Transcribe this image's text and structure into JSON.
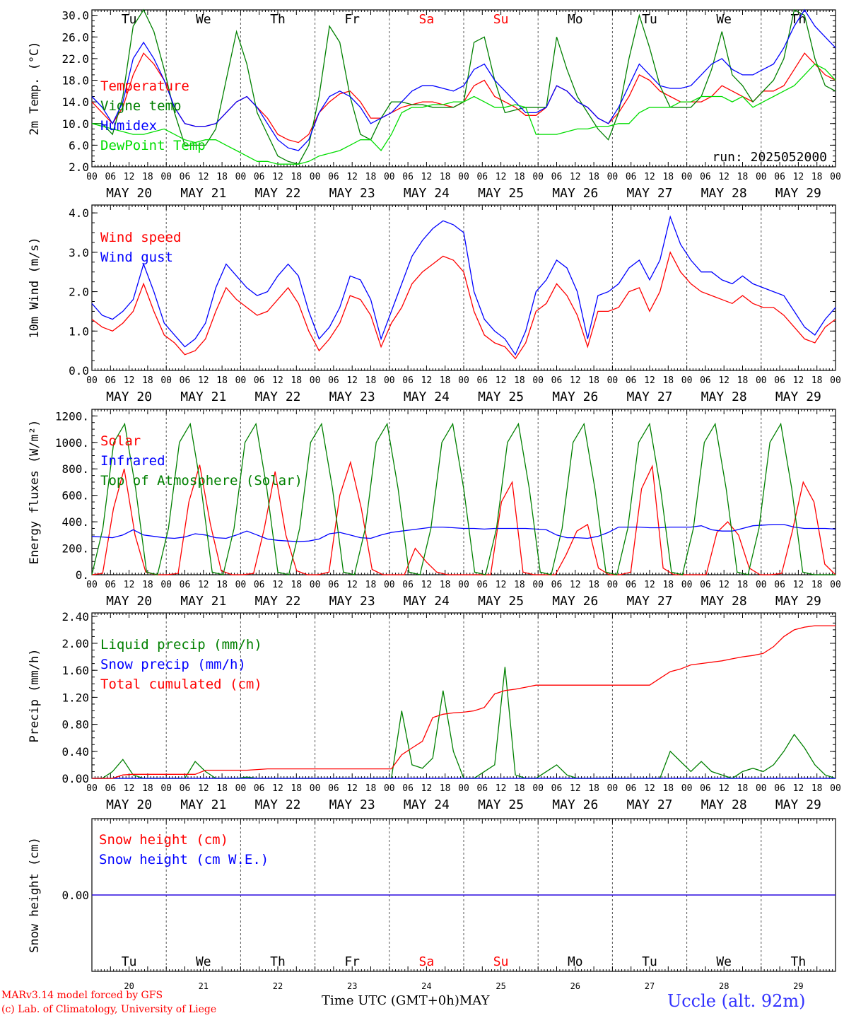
{
  "days": [
    "Tu",
    "We",
    "Th",
    "Fr",
    "Sa",
    "Su",
    "Mo",
    "Tu",
    "We",
    "Th"
  ],
  "weekend_days": [
    4,
    5
  ],
  "dates": [
    "MAY 20",
    "MAY 21",
    "MAY 22",
    "MAY 23",
    "MAY 24",
    "MAY 25",
    "MAY 26",
    "MAY 27",
    "MAY 28",
    "MAY 29"
  ],
  "day_numbers": [
    "20",
    "21",
    "22",
    "23",
    "24",
    "25",
    "26",
    "27",
    "28",
    "29"
  ],
  "hour_ticks": [
    "00",
    "06",
    "12",
    "18"
  ],
  "footer": {
    "model": "MARv3.14 model forced by GFS",
    "lab": "(c) Lab. of Climatology, University of Liege",
    "xlabel": "Time UTC (GMT+0h)",
    "month": "MAY",
    "station": "Uccle (alt. 92m)"
  },
  "colors": {
    "red": "#ff0000",
    "green": "#008000",
    "blue": "#0000ff",
    "lime": "#00dd00",
    "axis": "#000000"
  },
  "chart_data": [
    {
      "type": "line",
      "ylabel": "2m Temp. (°C)",
      "ylim": [
        2,
        31
      ],
      "ticks": [
        2,
        6,
        10,
        14,
        18,
        22,
        26,
        30
      ],
      "tick_labels": [
        "2.0",
        "6.0",
        "10.0",
        "14.0",
        "18.0",
        "22.0",
        "26.0",
        "30.0"
      ],
      "annotation": "run: 2025052000",
      "x_hours_step": 6,
      "series": [
        {
          "name": "Temperature",
          "color": "red",
          "values": [
            14,
            12,
            10,
            13,
            19,
            23,
            21,
            18,
            13,
            10,
            9.5,
            9.5,
            10,
            12,
            14,
            15,
            13,
            11,
            8,
            7,
            6.5,
            8,
            12,
            14,
            15.5,
            16,
            14,
            11,
            11,
            12,
            13,
            13.5,
            14,
            14,
            13.5,
            13,
            14,
            17,
            18,
            15,
            14,
            13,
            11.5,
            11.5,
            13,
            17,
            16,
            14,
            13,
            11,
            10,
            12,
            15,
            19,
            18,
            16,
            15,
            14,
            14,
            14,
            15,
            17,
            16,
            15,
            14,
            16,
            16,
            17,
            20,
            23,
            21,
            19,
            18
          ]
        },
        {
          "name": "Vigne temp",
          "color": "green",
          "values": [
            10,
            10,
            8,
            15,
            28,
            31,
            27,
            20,
            12,
            6,
            6,
            6,
            9,
            18,
            27,
            21,
            12,
            8,
            4,
            3,
            2.5,
            6,
            15,
            28,
            25,
            15,
            8,
            7,
            11,
            14,
            14,
            13.5,
            13.5,
            13,
            13,
            13,
            14,
            25,
            26,
            18,
            12,
            12.5,
            13,
            13,
            13,
            26,
            20,
            15,
            12,
            9,
            7,
            12,
            22,
            30,
            24,
            17,
            13,
            13,
            13,
            15,
            20,
            27,
            19,
            17,
            14,
            16,
            18,
            22,
            31,
            30,
            22,
            17,
            16
          ]
        },
        {
          "name": "Humidex",
          "color": "blue",
          "values": [
            15,
            13,
            10,
            14,
            22,
            25,
            22,
            18,
            13,
            10,
            9.5,
            9.5,
            10,
            12,
            14,
            15,
            13,
            10,
            7,
            5.5,
            5,
            7,
            12,
            15,
            16,
            15,
            13,
            10,
            11,
            12,
            14,
            16,
            17,
            17,
            16.5,
            16,
            17,
            20,
            21,
            18,
            16,
            14,
            12,
            12,
            13,
            17,
            16,
            14,
            13,
            11,
            10,
            13,
            17,
            21,
            19,
            17,
            16.5,
            16.5,
            17,
            19,
            21,
            22,
            20,
            19,
            19,
            20,
            21,
            24,
            28,
            31,
            28,
            26,
            24
          ]
        },
        {
          "name": "DewPoint Temp",
          "color": "lime",
          "values": [
            10,
            9.5,
            9,
            8.5,
            8,
            8,
            8.5,
            9,
            8,
            7,
            6.5,
            7,
            7,
            6,
            5,
            4,
            3,
            3,
            2.5,
            2.5,
            2.5,
            3,
            4,
            4.5,
            5,
            6,
            7,
            7,
            5,
            8,
            12,
            13,
            13,
            13.5,
            13.5,
            14,
            14,
            15,
            14,
            13,
            13,
            13.5,
            13,
            8,
            8,
            8,
            8.5,
            9,
            9,
            9.5,
            9.5,
            10,
            10,
            12,
            13,
            13,
            13,
            14,
            14,
            15,
            15,
            15,
            14,
            15,
            13,
            14,
            15,
            16,
            17,
            19,
            21,
            20,
            18
          ]
        }
      ]
    },
    {
      "type": "line",
      "ylabel": "10m Wind (m/s)",
      "ylim": [
        0,
        4.2
      ],
      "ticks": [
        0,
        1,
        2,
        3,
        4
      ],
      "tick_labels": [
        "0.0",
        "1.0",
        "2.0",
        "3.0",
        "4.0"
      ],
      "x_hours_step": 6,
      "series": [
        {
          "name": "Wind speed",
          "color": "red",
          "values": [
            1.3,
            1.1,
            1.0,
            1.2,
            1.5,
            2.2,
            1.5,
            0.9,
            0.7,
            0.4,
            0.5,
            0.8,
            1.5,
            2.1,
            1.8,
            1.6,
            1.4,
            1.5,
            1.8,
            2.1,
            1.7,
            1.0,
            0.5,
            0.8,
            1.2,
            1.9,
            1.8,
            1.4,
            0.6,
            1.2,
            1.6,
            2.2,
            2.5,
            2.7,
            2.9,
            2.8,
            2.5,
            1.5,
            0.9,
            0.7,
            0.6,
            0.3,
            0.7,
            1.5,
            1.7,
            2.2,
            1.9,
            1.4,
            0.6,
            1.5,
            1.5,
            1.6,
            2.0,
            2.1,
            1.5,
            2.0,
            3.0,
            2.5,
            2.2,
            2.0,
            1.9,
            1.8,
            1.7,
            1.9,
            1.7,
            1.6,
            1.6,
            1.4,
            1.1,
            0.8,
            0.7,
            1.1,
            1.3
          ]
        },
        {
          "name": "Wind gust",
          "color": "blue",
          "values": [
            1.7,
            1.4,
            1.3,
            1.5,
            1.8,
            2.7,
            2.0,
            1.2,
            0.9,
            0.6,
            0.8,
            1.2,
            2.1,
            2.7,
            2.4,
            2.1,
            1.9,
            2.0,
            2.4,
            2.7,
            2.4,
            1.5,
            0.8,
            1.1,
            1.6,
            2.4,
            2.3,
            1.8,
            0.8,
            1.5,
            2.2,
            2.9,
            3.3,
            3.6,
            3.8,
            3.7,
            3.5,
            2.0,
            1.3,
            1.0,
            0.8,
            0.4,
            1.0,
            2.0,
            2.3,
            2.8,
            2.6,
            2.0,
            0.8,
            1.9,
            2.0,
            2.2,
            2.6,
            2.8,
            2.3,
            2.8,
            3.9,
            3.2,
            2.8,
            2.5,
            2.5,
            2.3,
            2.2,
            2.4,
            2.2,
            2.1,
            2.0,
            1.9,
            1.5,
            1.1,
            0.9,
            1.3,
            1.6
          ]
        }
      ]
    },
    {
      "type": "line",
      "ylabel": "Energy fluxes (W/m²)",
      "ylim": [
        0,
        1250
      ],
      "ticks": [
        0,
        200,
        400,
        600,
        800,
        1000,
        1200
      ],
      "tick_labels": [
        "0.",
        "200.",
        "400.",
        "600.",
        "800.",
        "1000.",
        "1200."
      ],
      "x_hours_step": 6,
      "series": [
        {
          "name": "Solar",
          "color": "red",
          "values": [
            0,
            10,
            500,
            800,
            300,
            20,
            0,
            0,
            10,
            550,
            830,
            380,
            30,
            0,
            0,
            10,
            350,
            780,
            300,
            30,
            0,
            0,
            20,
            600,
            850,
            500,
            40,
            0,
            0,
            0,
            200,
            100,
            20,
            0,
            0,
            0,
            0,
            0,
            550,
            700,
            20,
            0,
            0,
            0,
            150,
            330,
            380,
            50,
            0,
            0,
            20,
            650,
            820,
            50,
            0,
            0,
            0,
            0,
            320,
            400,
            300,
            50,
            0,
            0,
            10,
            330,
            700,
            550,
            80,
            0
          ]
        },
        {
          "name": "Infrared",
          "color": "blue",
          "values": [
            290,
            285,
            280,
            300,
            340,
            300,
            290,
            280,
            275,
            285,
            310,
            300,
            280,
            275,
            300,
            330,
            300,
            270,
            260,
            255,
            250,
            255,
            270,
            310,
            320,
            300,
            280,
            275,
            300,
            320,
            330,
            340,
            350,
            360,
            360,
            355,
            350,
            350,
            345,
            350,
            350,
            350,
            350,
            345,
            340,
            300,
            280,
            280,
            275,
            290,
            320,
            360,
            360,
            360,
            355,
            355,
            360,
            360,
            360,
            370,
            340,
            330,
            330,
            350,
            370,
            375,
            380,
            380,
            360,
            350,
            350,
            350,
            345
          ]
        },
        {
          "name": "Top of Atmosphere (Solar)",
          "color": "green",
          "values": [
            0,
            350,
            1000,
            1140,
            650,
            20,
            0,
            350,
            1000,
            1140,
            650,
            20,
            0,
            350,
            1000,
            1140,
            650,
            20,
            0,
            350,
            1000,
            1140,
            650,
            20,
            0,
            350,
            1000,
            1140,
            650,
            20,
            0,
            350,
            1000,
            1140,
            650,
            20,
            0,
            350,
            1000,
            1140,
            650,
            20,
            0,
            350,
            1000,
            1140,
            650,
            20,
            0,
            350,
            1000,
            1140,
            650,
            20,
            0,
            350,
            1000,
            1140,
            650,
            20,
            0,
            350,
            1000,
            1140,
            650,
            20,
            0,
            0,
            0
          ]
        }
      ]
    },
    {
      "type": "line",
      "ylabel": "Precip (mm/h)",
      "ylim": [
        0,
        2.45
      ],
      "ticks": [
        0,
        0.4,
        0.8,
        1.2,
        1.6,
        2.0,
        2.4
      ],
      "tick_labels": [
        "0.00",
        "0.40",
        "0.80",
        "1.20",
        "1.60",
        "2.00",
        "2.40"
      ],
      "x_hours_step": 6,
      "series": [
        {
          "name": "Liquid precip (mm/h)",
          "color": "green",
          "values": [
            0,
            0,
            0.1,
            0.28,
            0.05,
            0,
            0,
            0,
            0,
            0,
            0.25,
            0.1,
            0,
            0,
            0,
            0.02,
            0,
            0,
            0,
            0,
            0,
            0,
            0,
            0,
            0,
            0,
            0,
            0,
            0,
            0,
            1.0,
            0.2,
            0.15,
            0.3,
            1.3,
            0.4,
            0,
            0,
            0.1,
            0.2,
            1.65,
            0.05,
            0,
            0,
            0.1,
            0.2,
            0.05,
            0,
            0,
            0,
            0,
            0,
            0,
            0,
            0,
            0,
            0.4,
            0.25,
            0.1,
            0.25,
            0.1,
            0.05,
            0,
            0.1,
            0.15,
            0.1,
            0.2,
            0.4,
            0.65,
            0.45,
            0.2,
            0.05,
            0
          ]
        },
        {
          "name": "Snow precip (mm/h)",
          "color": "blue",
          "values": [
            0,
            0,
            0,
            0,
            0,
            0,
            0,
            0,
            0,
            0,
            0,
            0,
            0,
            0,
            0,
            0,
            0,
            0,
            0,
            0,
            0,
            0,
            0,
            0,
            0,
            0,
            0,
            0,
            0,
            0,
            0,
            0,
            0,
            0,
            0,
            0,
            0,
            0,
            0,
            0,
            0,
            0,
            0,
            0,
            0,
            0,
            0,
            0,
            0,
            0,
            0,
            0,
            0,
            0,
            0,
            0,
            0,
            0,
            0,
            0,
            0,
            0,
            0,
            0,
            0,
            0,
            0,
            0,
            0,
            0,
            0,
            0,
            0
          ]
        },
        {
          "name": "Total cumulated (cm)",
          "color": "red",
          "values": [
            0,
            0,
            0,
            0.05,
            0.06,
            0.06,
            0.06,
            0.06,
            0.06,
            0.06,
            0.06,
            0.12,
            0.12,
            0.12,
            0.12,
            0.12,
            0.13,
            0.14,
            0.14,
            0.14,
            0.14,
            0.14,
            0.14,
            0.14,
            0.14,
            0.14,
            0.14,
            0.14,
            0.14,
            0.14,
            0.35,
            0.45,
            0.55,
            0.9,
            0.95,
            0.97,
            0.98,
            1.0,
            1.05,
            1.25,
            1.3,
            1.32,
            1.35,
            1.38,
            1.38,
            1.38,
            1.38,
            1.38,
            1.38,
            1.38,
            1.38,
            1.38,
            1.38,
            1.38,
            1.38,
            1.48,
            1.58,
            1.62,
            1.68,
            1.7,
            1.72,
            1.74,
            1.77,
            1.8,
            1.82,
            1.85,
            1.95,
            2.1,
            2.2,
            2.24,
            2.26,
            2.26,
            2.26
          ]
        }
      ]
    },
    {
      "type": "line",
      "ylabel": "Snow height (cm)",
      "ylim": [
        -1,
        1
      ],
      "ticks": [
        0
      ],
      "tick_labels": [
        "0.00"
      ],
      "x_hours_step": 6,
      "series": [
        {
          "name": "Snow height (cm)",
          "color": "red",
          "values": [
            0,
            0
          ]
        },
        {
          "name": "Snow height (cm W.E.)",
          "color": "blue",
          "values": [
            0,
            0
          ]
        }
      ]
    }
  ]
}
